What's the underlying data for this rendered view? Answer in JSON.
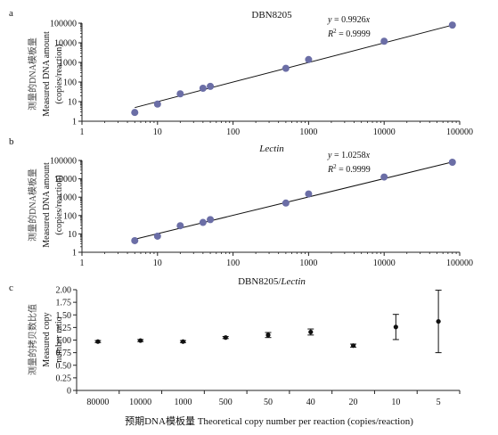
{
  "chart_data": [
    {
      "type": "scatter",
      "panel": "a",
      "title": "DBN8205",
      "title_italic": false,
      "xscale": "log",
      "yscale": "log",
      "xlim": [
        1,
        100000
      ],
      "ylim": [
        1,
        100000
      ],
      "x_ticks": [
        "1",
        "10",
        "100",
        "1000",
        "10000",
        "100000"
      ],
      "y_ticks": [
        "1",
        "10",
        "100",
        "1000",
        "10000",
        "100000"
      ],
      "ylabel_lines": [
        "测量的DNA模板量",
        "Measured DNA amount",
        "(copies/reaction)"
      ],
      "equation": {
        "y_prefix": "y",
        "eq_rest": " = 0.9926",
        "x_suffix": "x",
        "r2_prefix": "R",
        "r2_rest": " = 0.9999"
      },
      "fit": {
        "slope": 0.9926,
        "x_range": [
          5,
          80000
        ]
      },
      "marker_color": "#6b6ea6",
      "points": [
        {
          "x": 5,
          "y": 2.8
        },
        {
          "x": 10,
          "y": 7.5
        },
        {
          "x": 20,
          "y": 25
        },
        {
          "x": 40,
          "y": 48
        },
        {
          "x": 50,
          "y": 60
        },
        {
          "x": 500,
          "y": 500
        },
        {
          "x": 1000,
          "y": 1400
        },
        {
          "x": 10000,
          "y": 12000
        },
        {
          "x": 80000,
          "y": 80000
        }
      ]
    },
    {
      "type": "scatter",
      "panel": "b",
      "title": "Lectin",
      "title_italic": true,
      "xscale": "log",
      "yscale": "log",
      "xlim": [
        1,
        100000
      ],
      "ylim": [
        1,
        100000
      ],
      "x_ticks": [
        "1",
        "10",
        "100",
        "1000",
        "10000",
        "100000"
      ],
      "y_ticks": [
        "1",
        "10",
        "100",
        "1000",
        "10000",
        "100000"
      ],
      "ylabel_lines": [
        "测量的DNA模板量",
        "Measured DNA amount",
        "(copies/reaction)"
      ],
      "equation": {
        "y_prefix": "y",
        "eq_rest": " = 1.0258",
        "x_suffix": "x",
        "r2_prefix": "R",
        "r2_rest": " = 0.9999"
      },
      "fit": {
        "slope": 1.0258,
        "x_range": [
          5,
          80000
        ]
      },
      "marker_color": "#6b6ea6",
      "points": [
        {
          "x": 5,
          "y": 4.3
        },
        {
          "x": 10,
          "y": 7.5
        },
        {
          "x": 20,
          "y": 28
        },
        {
          "x": 40,
          "y": 42
        },
        {
          "x": 50,
          "y": 60
        },
        {
          "x": 500,
          "y": 480
        },
        {
          "x": 1000,
          "y": 1500
        },
        {
          "x": 10000,
          "y": 12500
        },
        {
          "x": 80000,
          "y": 80000
        }
      ]
    },
    {
      "type": "scatter",
      "panel": "c",
      "title_prefix": "DBN8205/",
      "title_italic_part": "Lectin",
      "ylim": [
        0,
        2
      ],
      "y_ticks": [
        "0",
        "0.25",
        "0.50",
        "0.75",
        "1.00",
        "1.25",
        "1.50",
        "1.75",
        "2.00"
      ],
      "ylabel_lines": [
        "测量的拷贝数比值",
        "Measured copy",
        "number ratio"
      ],
      "xlabel": "预期DNA模板量 Theoretical copy number per reaction (copies/reaction)",
      "categories": [
        "80000",
        "10000",
        "1000",
        "500",
        "50",
        "40",
        "20",
        "10",
        "5"
      ],
      "marker_color": "#111111",
      "values": [
        0.97,
        0.99,
        0.97,
        1.05,
        1.1,
        1.16,
        0.89,
        1.26,
        1.37
      ],
      "errors": [
        0.02,
        0.02,
        0.02,
        0.02,
        0.05,
        0.06,
        0.03,
        0.25,
        0.62
      ]
    }
  ]
}
